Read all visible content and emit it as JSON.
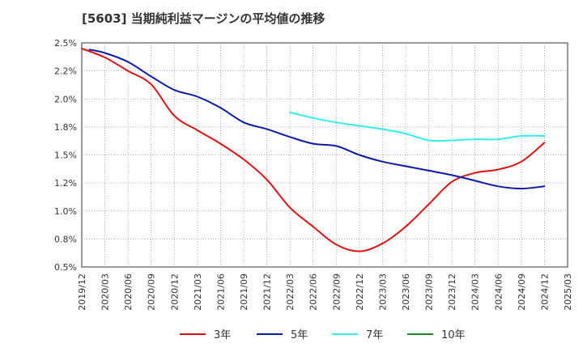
{
  "chart_data": {
    "type": "line",
    "title": "[5603]  当期純利益マージンの平均値の推移",
    "xlabel": "",
    "ylabel": "",
    "x_ticks": [
      "2019/12",
      "2020/03",
      "2020/06",
      "2020/09",
      "2020/12",
      "2021/03",
      "2021/06",
      "2021/09",
      "2021/12",
      "2022/03",
      "2022/06",
      "2022/09",
      "2022/12",
      "2023/03",
      "2023/06",
      "2023/09",
      "2023/12",
      "2024/03",
      "2024/06",
      "2024/09",
      "2024/12",
      "2025/03"
    ],
    "y_ticks": [
      "0.5%",
      "0.8%",
      "1.0%",
      "1.2%",
      "1.5%",
      "1.8%",
      "2.0%",
      "2.2%",
      "2.5%"
    ],
    "ylim": [
      0.5,
      2.5
    ],
    "grid": true,
    "legend_position": "bottom",
    "series": [
      {
        "name": "3年",
        "color": "#dd1111",
        "points": [
          [
            "2019/12",
            2.45
          ],
          [
            "2020/03",
            2.37
          ],
          [
            "2020/06",
            2.25
          ],
          [
            "2020/09",
            2.13
          ],
          [
            "2020/12",
            1.85
          ],
          [
            "2021/03",
            1.72
          ],
          [
            "2021/06",
            1.6
          ],
          [
            "2021/09",
            1.46
          ],
          [
            "2021/12",
            1.28
          ],
          [
            "2022/03",
            1.03
          ],
          [
            "2022/06",
            0.86
          ],
          [
            "2022/09",
            0.7
          ],
          [
            "2022/12",
            0.64
          ],
          [
            "2023/03",
            0.71
          ],
          [
            "2023/06",
            0.86
          ],
          [
            "2023/09",
            1.06
          ],
          [
            "2023/12",
            1.26
          ],
          [
            "2024/03",
            1.34
          ],
          [
            "2024/06",
            1.37
          ],
          [
            "2024/09",
            1.44
          ],
          [
            "2024/12",
            1.61
          ]
        ]
      },
      {
        "name": "5年",
        "color": "#0a1aaa",
        "points": [
          [
            "2020/01",
            2.44
          ],
          [
            "2020/03",
            2.41
          ],
          [
            "2020/06",
            2.33
          ],
          [
            "2020/09",
            2.2
          ],
          [
            "2020/12",
            2.08
          ],
          [
            "2021/03",
            2.02
          ],
          [
            "2021/06",
            1.92
          ],
          [
            "2021/09",
            1.79
          ],
          [
            "2021/12",
            1.73
          ],
          [
            "2022/03",
            1.66
          ],
          [
            "2022/06",
            1.6
          ],
          [
            "2022/09",
            1.58
          ],
          [
            "2022/12",
            1.5
          ],
          [
            "2023/03",
            1.44
          ],
          [
            "2023/06",
            1.4
          ],
          [
            "2023/09",
            1.36
          ],
          [
            "2023/12",
            1.32
          ],
          [
            "2024/03",
            1.27
          ],
          [
            "2024/06",
            1.22
          ],
          [
            "2024/09",
            1.2
          ],
          [
            "2024/12",
            1.22
          ]
        ]
      },
      {
        "name": "7年",
        "color": "#33eeee",
        "points": [
          [
            "2022/03",
            1.88
          ],
          [
            "2022/06",
            1.83
          ],
          [
            "2022/09",
            1.79
          ],
          [
            "2022/12",
            1.76
          ],
          [
            "2023/03",
            1.73
          ],
          [
            "2023/06",
            1.69
          ],
          [
            "2023/09",
            1.63
          ],
          [
            "2023/12",
            1.63
          ],
          [
            "2024/03",
            1.64
          ],
          [
            "2024/06",
            1.64
          ],
          [
            "2024/09",
            1.67
          ],
          [
            "2024/12",
            1.67
          ]
        ]
      },
      {
        "name": "10年",
        "color": "#228822",
        "points": []
      }
    ]
  }
}
